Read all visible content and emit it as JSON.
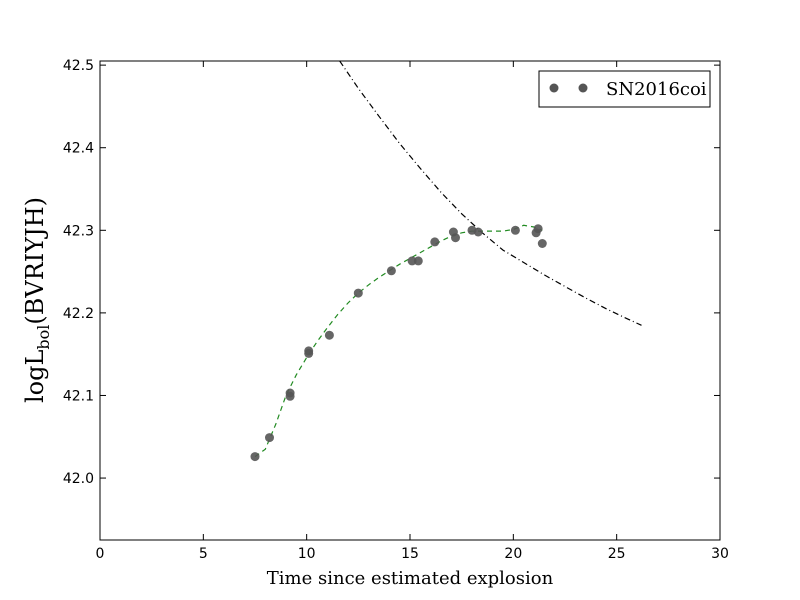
{
  "chart_data": {
    "type": "scatter",
    "xlabel": "Time since estimated explosion",
    "ylabel": {
      "prefix": "logL",
      "subscript": "bol",
      "suffix": "(BVRIYJH)"
    },
    "xlim": [
      0,
      30
    ],
    "ylim": [
      41.925,
      42.505
    ],
    "xticks": [
      0,
      5,
      10,
      15,
      20,
      25,
      30
    ],
    "yticks": [
      42.0,
      42.1,
      42.2,
      42.3,
      42.4,
      42.5
    ],
    "ytick_labels": [
      "42.0",
      "42.1",
      "42.2",
      "42.3",
      "42.4",
      "42.5"
    ],
    "grid": false,
    "legend": {
      "position": "top-right"
    },
    "series": [
      {
        "name": "SN2016coi",
        "kind": "scatter",
        "color": "#555555",
        "x": [
          7.5,
          8.2,
          9.2,
          9.2,
          10.1,
          10.1,
          11.1,
          12.5,
          14.1,
          15.1,
          15.4,
          16.2,
          17.1,
          17.2,
          18.0,
          18.3,
          20.1,
          21.1,
          21.2,
          21.4
        ],
        "y": [
          42.026,
          42.049,
          42.103,
          42.099,
          42.154,
          42.151,
          42.173,
          42.224,
          42.251,
          42.263,
          42.263,
          42.286,
          42.298,
          42.291,
          42.3,
          42.298,
          42.3,
          42.297,
          42.302,
          42.284
        ]
      },
      {
        "kind": "line",
        "style": "dashed",
        "color": "#228b22",
        "x": [
          7.5,
          8.0,
          8.5,
          9.0,
          9.5,
          10.0,
          10.5,
          11.0,
          11.5,
          12.0,
          12.5,
          13.0,
          13.5,
          14.0,
          14.5,
          15.0,
          15.5,
          16.0,
          16.5,
          17.0,
          17.5,
          18.0,
          18.5,
          19.0,
          19.5,
          20.0,
          20.5,
          21.0,
          21.4
        ],
        "y": [
          42.026,
          42.035,
          42.065,
          42.1,
          42.125,
          42.146,
          42.165,
          42.182,
          42.198,
          42.212,
          42.224,
          42.234,
          42.243,
          42.251,
          42.259,
          42.266,
          42.273,
          42.28,
          42.287,
          42.293,
          42.297,
          42.299,
          42.299,
          42.299,
          42.299,
          42.301,
          42.306,
          42.304,
          42.3
        ]
      },
      {
        "kind": "line",
        "style": "dashdot",
        "color": "#000000",
        "x": [
          11.6,
          12.5,
          13.5,
          14.5,
          15.5,
          16.5,
          17.5,
          18.5,
          19.5,
          20.5,
          21.5,
          22.5,
          23.5,
          24.5,
          25.5,
          26.2
        ],
        "y": [
          42.505,
          42.472,
          42.438,
          42.405,
          42.375,
          42.346,
          42.32,
          42.297,
          42.276,
          42.261,
          42.246,
          42.232,
          42.218,
          42.205,
          42.193,
          42.185
        ]
      }
    ]
  }
}
